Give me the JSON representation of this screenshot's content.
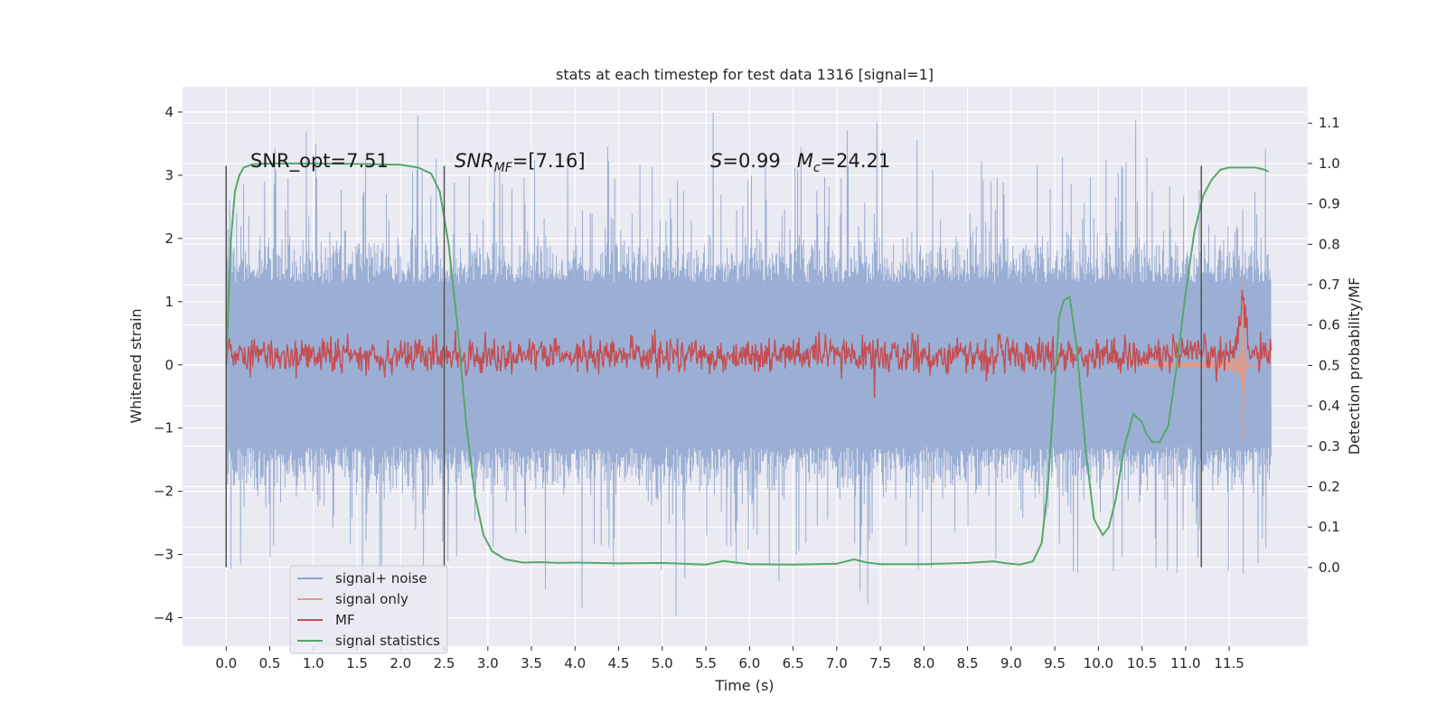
{
  "chart_data": {
    "type": "line",
    "title": "stats at each timestep for test data 1316 [signal=1]",
    "xlabel": "Time (s)",
    "ylabel": "Whitened strain",
    "y2label": "Detection probability/MF",
    "xlim": [
      -0.5,
      12.4
    ],
    "ylim": [
      -4.45,
      4.4
    ],
    "y2lim": [
      -0.195,
      1.19
    ],
    "xticks": [
      0.0,
      0.5,
      1.0,
      1.5,
      2.0,
      2.5,
      3.0,
      3.5,
      4.0,
      4.5,
      5.0,
      5.5,
      6.0,
      6.5,
      7.0,
      7.5,
      8.0,
      8.5,
      9.0,
      9.5,
      10.0,
      10.5,
      11.0,
      11.5
    ],
    "yticks": [
      -4,
      -3,
      -2,
      -1,
      0,
      1,
      2,
      3,
      4
    ],
    "y2ticks": [
      0.0,
      0.1,
      0.2,
      0.3,
      0.4,
      0.5,
      0.6,
      0.7,
      0.8,
      0.9,
      1.0,
      1.1
    ],
    "grid": true,
    "legend_position": "lower-left",
    "annotations": {
      "snr_opt": "SNR_opt=7.51",
      "snr_mf_main": "SNR",
      "snr_mf_sub": "MF",
      "snr_mf_rest": "=[7.16]",
      "s_symbol": "S",
      "s_value": "=0.99",
      "mc_symbol": "M",
      "mc_sub": "c",
      "mc_value": "=24.21"
    },
    "vertical_markers_x": [
      0.0,
      2.5,
      11.18
    ],
    "series": [
      {
        "name": "signal+ noise",
        "color": "#8da5cf",
        "axis": "left",
        "style": "dense noise band, roughly ±1.9 typical with spikes to about ±4",
        "x_range": [
          0.0,
          11.98
        ]
      },
      {
        "name": "signal only",
        "color": "#e39a86",
        "axis": "left",
        "style": "chirp growing in amplitude toward merger",
        "merger_x": 11.65,
        "peak_amplitude": 1.55,
        "x_range": [
          10.5,
          11.98
        ]
      },
      {
        "name": "MF",
        "color": "#c44e52",
        "axis": "right",
        "style": "noisy band around 0.52 with spike near merger",
        "mean": 0.525,
        "jitter": 0.022,
        "spike_x": 11.65,
        "spike_peak": 0.67,
        "x_range": [
          0.0,
          11.98
        ]
      },
      {
        "name": "signal statistics",
        "color": "#55a868",
        "axis": "right",
        "x": [
          0.0,
          0.05,
          0.1,
          0.15,
          0.2,
          0.3,
          0.5,
          1.0,
          1.5,
          2.0,
          2.2,
          2.35,
          2.45,
          2.55,
          2.65,
          2.75,
          2.85,
          2.95,
          3.05,
          3.2,
          3.4,
          3.6,
          3.8,
          4.0,
          4.5,
          5.0,
          5.5,
          5.7,
          6.0,
          6.5,
          7.0,
          7.2,
          7.35,
          7.5,
          8.0,
          8.5,
          8.8,
          8.95,
          9.1,
          9.25,
          9.35,
          9.42,
          9.5,
          9.55,
          9.6,
          9.67,
          9.75,
          9.85,
          9.95,
          10.05,
          10.12,
          10.2,
          10.3,
          10.4,
          10.5,
          10.55,
          10.62,
          10.7,
          10.8,
          10.9,
          11.0,
          11.1,
          11.2,
          11.3,
          11.4,
          11.5,
          11.6,
          11.7,
          11.8,
          11.9,
          11.95
        ],
        "y": [
          0.5,
          0.8,
          0.93,
          0.97,
          0.99,
          0.998,
          1.0,
          1.0,
          0.999,
          0.997,
          0.99,
          0.975,
          0.93,
          0.8,
          0.6,
          0.36,
          0.18,
          0.08,
          0.04,
          0.02,
          0.012,
          0.013,
          0.011,
          0.012,
          0.01,
          0.011,
          0.007,
          0.016,
          0.008,
          0.007,
          0.009,
          0.02,
          0.012,
          0.008,
          0.008,
          0.011,
          0.015,
          0.01,
          0.007,
          0.015,
          0.06,
          0.2,
          0.45,
          0.62,
          0.66,
          0.67,
          0.55,
          0.3,
          0.12,
          0.08,
          0.1,
          0.17,
          0.3,
          0.38,
          0.36,
          0.33,
          0.31,
          0.31,
          0.35,
          0.5,
          0.68,
          0.83,
          0.92,
          0.96,
          0.985,
          0.99,
          0.99,
          0.99,
          0.99,
          0.985,
          0.98
        ]
      }
    ]
  }
}
